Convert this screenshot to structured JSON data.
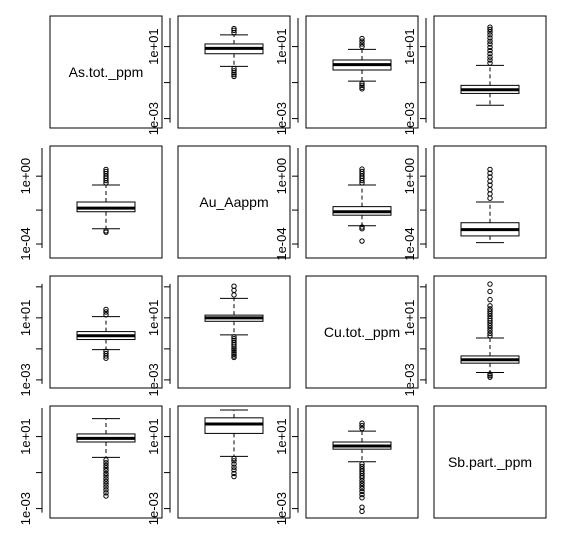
{
  "chart_data": {
    "type": "boxplot-matrix",
    "variables": [
      "As.tot._ppm",
      "Au_Aappm",
      "Cu.tot._ppm",
      "Sb.part._ppm"
    ],
    "y_scale": "log10",
    "panels": [
      {
        "id": "r0c0",
        "row": 0,
        "col": 0,
        "diagonal": true,
        "label": "As.tot._ppm"
      },
      {
        "id": "r0c1",
        "row": 0,
        "col": 1,
        "ylim": [
          0.0003,
          500
        ],
        "ticks": [
          {
            "v": 0.001,
            "label": "1e-03"
          },
          {
            "v": 10,
            "label": "1e+01"
          }
        ],
        "box": {
          "q1": 4,
          "median": 8,
          "q3": 14,
          "lo": 0.8,
          "hi": 45
        },
        "outliers_low": [
          0.6,
          0.45,
          0.35,
          0.28,
          0.22
        ],
        "outliers_high": [
          60,
          80,
          100
        ]
      },
      {
        "id": "r0c2",
        "row": 0,
        "col": 2,
        "ylim": [
          0.0003,
          500
        ],
        "ticks": [
          {
            "v": 0.001,
            "label": "1e-03"
          },
          {
            "v": 10,
            "label": "1e+01"
          }
        ],
        "box": {
          "q1": 0.5,
          "median": 1,
          "q3": 1.8,
          "lo": 0.12,
          "hi": 7
        },
        "outliers_low": [
          0.09,
          0.07,
          0.055,
          0.045
        ],
        "outliers_high": [
          10,
          14,
          20,
          28
        ]
      },
      {
        "id": "r0c3",
        "row": 0,
        "col": 3,
        "ylim": [
          0.0003,
          500
        ],
        "ticks": [
          {
            "v": 0.001,
            "label": "1e-03"
          },
          {
            "v": 10,
            "label": "1e+01"
          }
        ],
        "box": {
          "q1": 0.025,
          "median": 0.04,
          "q3": 0.07,
          "lo": 0.0055,
          "hi": 0.9
        },
        "outliers_low": [],
        "outliers_high": [
          1.2,
          1.8,
          2.6,
          4,
          6,
          9,
          14,
          20,
          30,
          45,
          65,
          90,
          120
        ]
      },
      {
        "id": "r1c0",
        "row": 1,
        "col": 0,
        "ylim": [
          1.5e-05,
          60
        ],
        "ticks": [
          {
            "v": 0.0001,
            "label": "1e-04"
          },
          {
            "v": 1,
            "label": "1e+00"
          }
        ],
        "box": {
          "q1": 0.008,
          "median": 0.013,
          "q3": 0.03,
          "lo": 0.0008,
          "hi": 0.3
        },
        "outliers_low": [
          0.0006,
          0.0005
        ],
        "outliers_high": [
          0.4,
          0.55,
          0.75,
          1,
          1.4,
          1.9,
          2.5
        ]
      },
      {
        "id": "r1c1",
        "row": 1,
        "col": 1,
        "diagonal": true,
        "label": "Au_Aappm"
      },
      {
        "id": "r1c2",
        "row": 1,
        "col": 2,
        "ylim": [
          1.5e-05,
          60
        ],
        "ticks": [
          {
            "v": 0.0001,
            "label": "1e-04"
          },
          {
            "v": 1,
            "label": "1e+00"
          }
        ],
        "box": {
          "q1": 0.005,
          "median": 0.008,
          "q3": 0.016,
          "lo": 0.0012,
          "hi": 0.3
        },
        "outliers_low": [
          0.001,
          0.0008,
          0.00015
        ],
        "outliers_high": [
          0.4,
          0.55,
          0.75,
          1,
          1.4,
          1.9,
          2.6
        ]
      },
      {
        "id": "r1c3",
        "row": 1,
        "col": 2.9999,
        "ylim": [
          1.5e-05,
          60
        ],
        "ticks": [
          {
            "v": 0.0001,
            "label": "1e-04"
          },
          {
            "v": 1,
            "label": "1e+00"
          }
        ],
        "box": {
          "q1": 0.0003,
          "median": 0.0007,
          "q3": 0.0018,
          "lo": 0.00012,
          "hi": 0.03
        },
        "outliers_low": [],
        "outliers_high": [
          0.05,
          0.09,
          0.16,
          0.3,
          0.5,
          0.9,
          1.5,
          2.5
        ]
      },
      {
        "id": "r2c0",
        "row": 2,
        "col": 0,
        "ylim": [
          0.0003,
          5000
        ],
        "ticks": [
          {
            "v": 0.001,
            "label": "1e-03"
          },
          {
            "v": 10,
            "label": "1e+01"
          }
        ],
        "box": {
          "q1": 0.4,
          "median": 0.7,
          "q3": 1.3,
          "lo": 0.09,
          "hi": 12
        },
        "outliers_low": [
          0.07,
          0.05,
          0.035,
          0.025
        ],
        "outliers_high": [
          16,
          24,
          35
        ]
      },
      {
        "id": "r2c1",
        "row": 2,
        "col": 1,
        "ylim": [
          0.0003,
          5000
        ],
        "ticks": [
          {
            "v": 0.001,
            "label": "1e-03"
          },
          {
            "v": 10,
            "label": "1e+01"
          }
        ],
        "box": {
          "q1": 6,
          "median": 10,
          "q3": 15,
          "lo": 0.8,
          "hi": 180
        },
        "outliers_low": [
          0.6,
          0.45,
          0.35,
          0.25,
          0.18,
          0.13,
          0.1,
          0.08,
          0.06,
          0.045,
          0.035,
          0.028
        ],
        "outliers_high": [
          300,
          600,
          1100
        ]
      },
      {
        "id": "r2c2",
        "row": 2,
        "col": 2,
        "diagonal": true,
        "label": "Cu.tot._ppm"
      },
      {
        "id": "r2c3",
        "row": 2,
        "col": 3,
        "ylim": [
          0.0003,
          5000
        ],
        "ticks": [
          {
            "v": 0.001,
            "label": "1e-03"
          },
          {
            "v": 10,
            "label": "1e+01"
          }
        ],
        "box": {
          "q1": 0.012,
          "median": 0.02,
          "q3": 0.035,
          "lo": 0.003,
          "hi": 0.5
        },
        "outliers_low": [
          0.0024,
          0.0019,
          0.0015
        ],
        "outliers_high": [
          0.7,
          1,
          1.5,
          2.2,
          3.2,
          4.6,
          6.5,
          9,
          13,
          19,
          27,
          38,
          60,
          150,
          500,
          1500
        ]
      },
      {
        "id": "r3c0",
        "row": 3,
        "col": 0,
        "ylim": [
          0.0003,
          500
        ],
        "ticks": [
          {
            "v": 0.001,
            "label": "1e-03"
          },
          {
            "v": 10,
            "label": "1e+01"
          }
        ],
        "box": {
          "q1": 5,
          "median": 8,
          "q3": 14,
          "lo": 0.7,
          "hi": 100
        },
        "outliers_low": [
          0.5,
          0.35,
          0.25,
          0.18,
          0.13,
          0.09,
          0.065,
          0.045,
          0.032,
          0.023,
          0.016,
          0.011,
          0.0075,
          0.005
        ],
        "outliers_high": []
      },
      {
        "id": "r3c1",
        "row": 3,
        "col": 1,
        "ylim": [
          0.0003,
          500
        ],
        "ticks": [
          {
            "v": 0.001,
            "label": "1e-03"
          },
          {
            "v": 10,
            "label": "1e+01"
          }
        ],
        "box": {
          "q1": 15,
          "median": 50,
          "q3": 110,
          "lo": 0.8,
          "hi": 300
        },
        "outliers_low": [
          0.6,
          0.45,
          0.3,
          0.2,
          0.14,
          0.09,
          0.06
        ],
        "outliers_high": []
      },
      {
        "id": "r3c2",
        "row": 3,
        "col": 2,
        "ylim": [
          0.0003,
          500
        ],
        "ticks": [
          {
            "v": 0.001,
            "label": "1e-03"
          },
          {
            "v": 10,
            "label": "1e+01"
          }
        ],
        "box": {
          "q1": 2,
          "median": 3,
          "q3": 5,
          "lo": 0.4,
          "hi": 20
        },
        "outliers_low": [
          0.3,
          0.22,
          0.16,
          0.12,
          0.09,
          0.065,
          0.05,
          0.035,
          0.025,
          0.018,
          0.013,
          0.009,
          0.006,
          0.004,
          0.0012,
          0.0007
        ],
        "outliers_high": [
          28,
          40,
          55
        ]
      },
      {
        "id": "r3c3",
        "row": 3,
        "col": 3,
        "diagonal": true,
        "label": "Sb.part._ppm"
      }
    ]
  }
}
